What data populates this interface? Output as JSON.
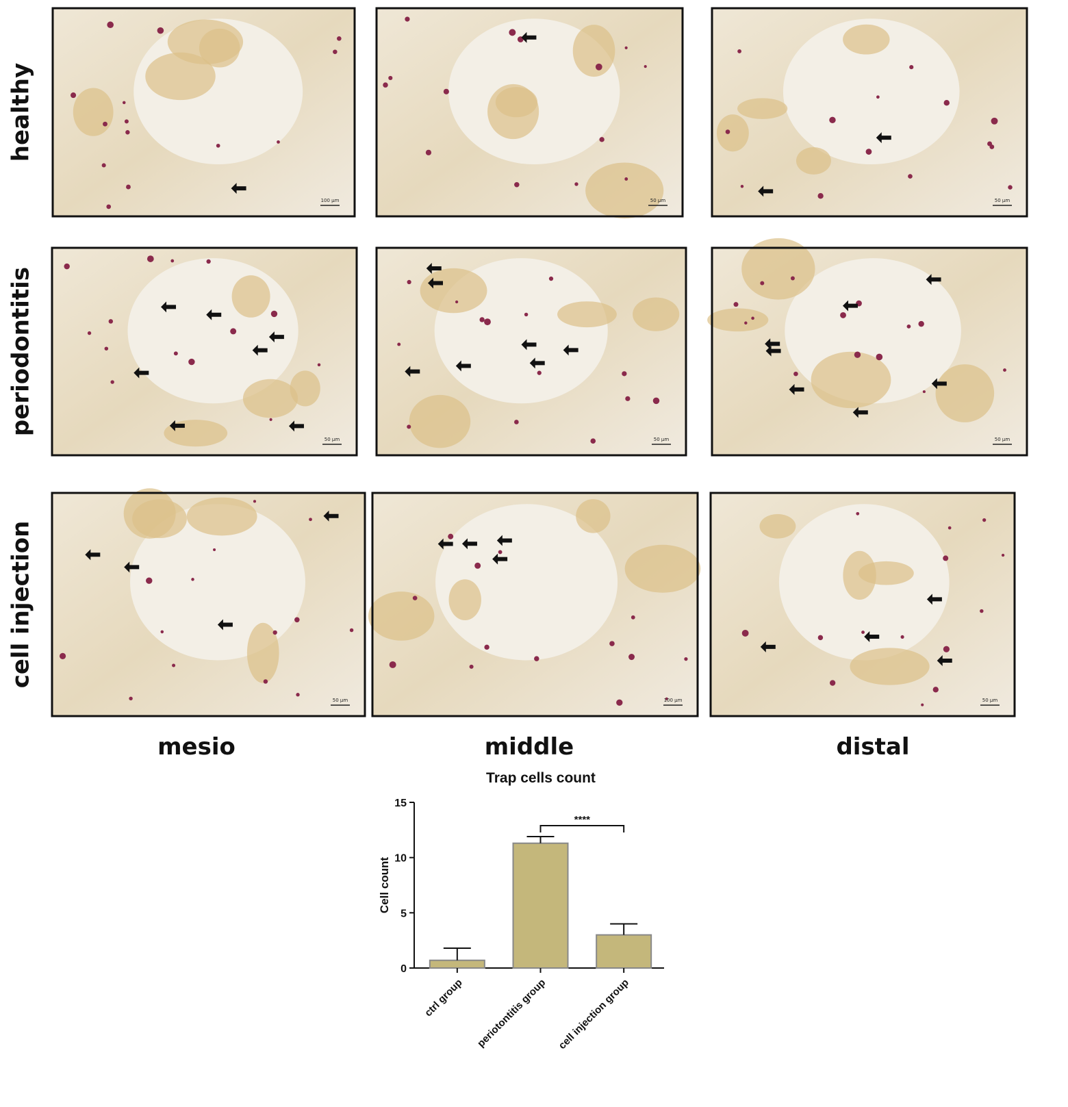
{
  "figure": {
    "row_labels": [
      "healthy",
      "periodontitis",
      "cell injection"
    ],
    "column_labels": [
      "mesio",
      "middle",
      "distal"
    ],
    "scale_bars": [
      [
        "100 μm",
        "50 μm",
        "50 μm"
      ],
      [
        "50 μm",
        "50 μm",
        "50 μm"
      ],
      [
        "50 μm",
        "100 μm",
        "50 μm"
      ]
    ]
  },
  "chart_data": {
    "type": "bar",
    "title": "Trap cells count",
    "y_label": "Cell count",
    "categories": [
      "ctrl group",
      "periotontitis group",
      "cell injection group"
    ],
    "values": [
      0.7,
      11.3,
      3.0
    ],
    "errors": [
      1.1,
      0.6,
      1.0
    ],
    "color": "#c4b77b",
    "ylim": [
      0,
      15
    ],
    "yticks": [
      0,
      5,
      10,
      15
    ],
    "significance": {
      "label": "****",
      "between": [
        "periotontitis group",
        "cell injection group"
      ]
    }
  }
}
